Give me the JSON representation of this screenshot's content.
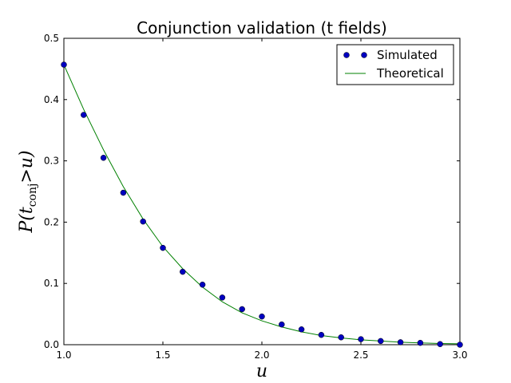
{
  "chart_data": {
    "type": "line",
    "title": "Conjunction validation (t fields)",
    "xlabel": "u",
    "ylabel": "P(t_conj > u)",
    "ylabel_parts": {
      "prefix": "P(",
      "var": "t",
      "sub": "conj",
      "rest": ">u)"
    },
    "xlim": [
      1.0,
      3.0
    ],
    "ylim": [
      0.0,
      0.5
    ],
    "xticks": [
      "1.0",
      "1.5",
      "2.0",
      "2.5",
      "3.0"
    ],
    "xtick_values": [
      1.0,
      1.5,
      2.0,
      2.5,
      3.0
    ],
    "yticks": [
      "0.0",
      "0.1",
      "0.2",
      "0.3",
      "0.4",
      "0.5"
    ],
    "ytick_values": [
      0.0,
      0.1,
      0.2,
      0.3,
      0.4,
      0.5
    ],
    "legend_position": "top-right",
    "grid": false,
    "series": [
      {
        "name": "Simulated",
        "style": "markers",
        "color": "#0000bf",
        "x": [
          1.0,
          1.1,
          1.2,
          1.3,
          1.4,
          1.5,
          1.6,
          1.7,
          1.8,
          1.9,
          2.0,
          2.1,
          2.2,
          2.3,
          2.4,
          2.5,
          2.6,
          2.7,
          2.8,
          2.9,
          3.0
        ],
        "y": [
          0.457,
          0.375,
          0.305,
          0.248,
          0.201,
          0.158,
          0.119,
          0.098,
          0.077,
          0.058,
          0.046,
          0.033,
          0.025,
          0.016,
          0.012,
          0.009,
          0.006,
          0.004,
          0.003,
          0.001,
          0.0
        ]
      },
      {
        "name": "Theoretical",
        "style": "line",
        "color": "#008000",
        "x": [
          1.0,
          1.1,
          1.2,
          1.3,
          1.4,
          1.5,
          1.6,
          1.7,
          1.8,
          1.9,
          2.0,
          2.1,
          2.2,
          2.3,
          2.4,
          2.5,
          2.6,
          2.7,
          2.8,
          2.9,
          3.0
        ],
        "y": [
          0.457,
          0.384,
          0.318,
          0.258,
          0.205,
          0.16,
          0.124,
          0.094,
          0.07,
          0.052,
          0.039,
          0.029,
          0.021,
          0.015,
          0.011,
          0.008,
          0.006,
          0.004,
          0.003,
          0.002,
          0.0015
        ]
      }
    ]
  }
}
